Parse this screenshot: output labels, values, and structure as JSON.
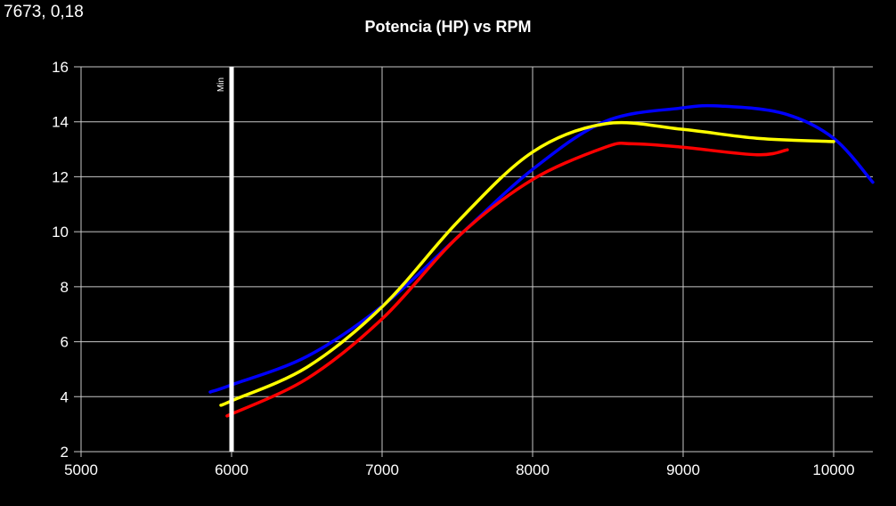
{
  "readout": "7673, 0,18",
  "chart_data": {
    "type": "line",
    "title": "Potencia (HP) vs RPM",
    "xlabel": "",
    "ylabel": "",
    "xlim": [
      5000,
      10260
    ],
    "ylim": [
      2,
      16
    ],
    "xticks": [
      5000,
      6000,
      7000,
      8000,
      9000,
      10000
    ],
    "yticks": [
      2,
      4,
      6,
      8,
      10,
      12,
      14,
      16
    ],
    "grid": true,
    "marker": {
      "x": 6000,
      "label": "Min",
      "color": "#ffffff"
    },
    "series": [
      {
        "name": "blue",
        "color": "#0000ff",
        "x": [
          5858,
          6000,
          6503,
          7006,
          7509,
          8000,
          8485,
          8988,
          9254,
          9669,
          10000,
          10260
        ],
        "y": [
          4.17,
          4.43,
          5.47,
          7.32,
          9.84,
          12.27,
          14.02,
          14.5,
          14.57,
          14.3,
          13.4,
          11.8
        ]
      },
      {
        "name": "yellow",
        "color": "#ffff00",
        "x": [
          5929,
          6000,
          6503,
          7006,
          7509,
          8000,
          8485,
          8988,
          9491,
          10000
        ],
        "y": [
          3.69,
          3.85,
          5.08,
          7.3,
          10.4,
          12.9,
          13.93,
          13.73,
          13.4,
          13.28
        ]
      },
      {
        "name": "red",
        "color": "#ff0000",
        "x": [
          5970,
          6503,
          7006,
          7509,
          8000,
          8485,
          8663,
          8988,
          9491,
          9692
        ],
        "y": [
          3.3,
          4.66,
          6.86,
          9.84,
          11.9,
          13.08,
          13.2,
          13.08,
          12.8,
          12.98
        ]
      }
    ]
  }
}
